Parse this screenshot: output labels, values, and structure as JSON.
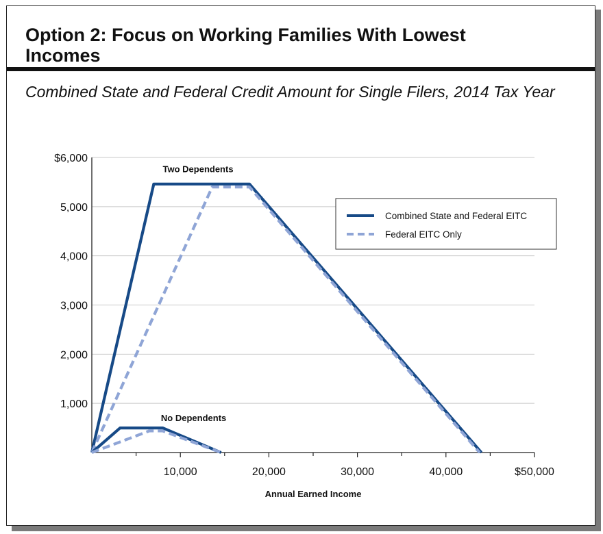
{
  "title": "Option 2: Focus on Working Families With Lowest Incomes",
  "subtitle": "Combined State and Federal Credit Amount for Single Filers, 2014 Tax Year",
  "colors": {
    "combined": "#174a87",
    "federal": "#8fa5d6",
    "grid": "#c8c8c8"
  },
  "chart_data": {
    "type": "line",
    "title": "Combined State and Federal Credit Amount for Single Filers, 2014 Tax Year",
    "xlabel": "Annual Earned Income",
    "ylabel": "",
    "xlim": [
      0,
      50000
    ],
    "ylim": [
      0,
      6000
    ],
    "x_ticks": [
      10000,
      20000,
      30000,
      40000,
      50000
    ],
    "x_tick_labels": [
      "10,000",
      "20,000",
      "30,000",
      "40,000",
      "$50,000"
    ],
    "y_ticks": [
      1000,
      2000,
      3000,
      4000,
      5000,
      6000
    ],
    "y_tick_labels": [
      "1,000",
      "2,000",
      "3,000",
      "4,000",
      "5,000",
      "$6,000"
    ],
    "grid": "horizontal",
    "legend_position": "top-right",
    "legend": [
      "Combined State and Federal EITC",
      "Federal EITC Only"
    ],
    "series": [
      {
        "name": "Combined State and Federal EITC",
        "group": "Two Dependents",
        "style": "solid",
        "x": [
          0,
          7000,
          17800,
          44000
        ],
        "y": [
          0,
          5460,
          5460,
          0
        ]
      },
      {
        "name": "Federal EITC Only",
        "group": "Two Dependents",
        "style": "dashed",
        "x": [
          0,
          13600,
          17800,
          43800
        ],
        "y": [
          0,
          5400,
          5400,
          0
        ]
      },
      {
        "name": "Combined State and Federal EITC",
        "group": "No Dependents",
        "style": "solid",
        "x": [
          0,
          3200,
          8000,
          14600
        ],
        "y": [
          0,
          500,
          500,
          0
        ]
      },
      {
        "name": "Federal EITC Only",
        "group": "No Dependents",
        "style": "dashed",
        "x": [
          0,
          6500,
          8000,
          14600
        ],
        "y": [
          0,
          440,
          440,
          0
        ]
      }
    ],
    "annotations": [
      {
        "text": "Two Dependents",
        "x": 12000,
        "y": 5700
      },
      {
        "text": "No Dependents",
        "x": 11500,
        "y": 640
      }
    ]
  }
}
